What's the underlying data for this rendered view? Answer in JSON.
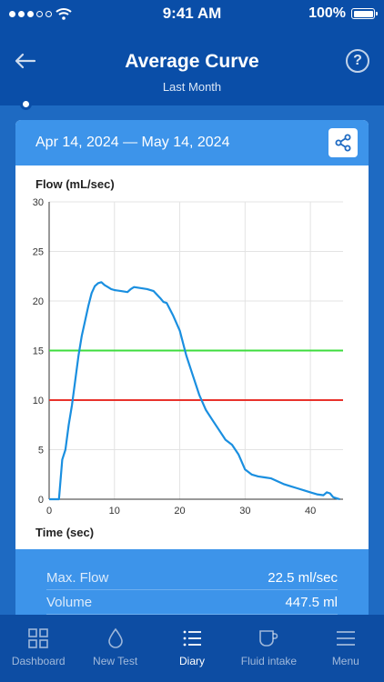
{
  "status_bar": {
    "time": "9:41 AM",
    "battery": "100%"
  },
  "header": {
    "title": "Average Curve",
    "subtitle": "Last Month",
    "help_label": "?"
  },
  "card": {
    "date_range": "Apr 14, 2024 — May 14, 2024"
  },
  "stats": [
    {
      "label": "Max. Flow",
      "value": "22.5 ml/sec"
    },
    {
      "label": "Volume",
      "value": "447.5 ml"
    }
  ],
  "tabs": [
    {
      "label": "Dashboard",
      "icon": "grid-icon",
      "active": false
    },
    {
      "label": "New Test",
      "icon": "droplet-icon",
      "active": false
    },
    {
      "label": "Diary",
      "icon": "list-icon",
      "active": true
    },
    {
      "label": "Fluid intake",
      "icon": "cup-icon",
      "active": false
    },
    {
      "label": "Menu",
      "icon": "menu-icon",
      "active": false
    }
  ],
  "colors": {
    "primary": "#0a4ea8",
    "accent": "#3d94ea",
    "curve": "#1a8fe0",
    "upper_ref": "#3ddc3d",
    "lower_ref": "#e8322b"
  },
  "chart_data": {
    "type": "line",
    "ylabel": "Flow (mL/sec)",
    "xlabel": "Time (sec)",
    "xlim": [
      0,
      45
    ],
    "ylim": [
      0,
      30
    ],
    "x_ticks": [
      0,
      10,
      20,
      30,
      40
    ],
    "y_ticks": [
      0,
      5,
      10,
      15,
      20,
      25,
      30
    ],
    "grid": true,
    "reference_lines": [
      {
        "y": 15,
        "color": "#3ddc3d"
      },
      {
        "y": 10,
        "color": "#e8322b"
      }
    ],
    "series": [
      {
        "x": [
          0,
          1.5,
          2,
          2.5,
          3,
          3.5,
          4,
          4.5,
          5,
          5.5,
          6,
          6.5,
          7,
          7.5,
          8,
          8.5,
          9,
          9.5,
          10,
          11,
          12,
          12.5,
          13,
          14,
          15,
          16,
          17,
          17.5,
          18,
          19,
          20,
          21,
          22,
          23,
          24,
          25,
          26,
          27,
          28,
          29,
          30,
          31,
          32,
          33,
          34,
          35,
          36,
          37,
          38,
          39,
          40,
          41,
          42,
          42.5,
          43,
          43.5,
          44,
          44.5
        ],
        "y": [
          0,
          0,
          4,
          5,
          7.5,
          9.5,
          12,
          14.5,
          16.5,
          18,
          19.5,
          20.8,
          21.5,
          21.8,
          21.9,
          21.6,
          21.4,
          21.2,
          21.1,
          21.0,
          20.9,
          21.2,
          21.4,
          21.3,
          21.2,
          21.0,
          20.3,
          19.9,
          19.8,
          18.5,
          17.0,
          14.5,
          12.5,
          10.5,
          9.0,
          8.0,
          7.0,
          6.0,
          5.5,
          4.5,
          3.0,
          2.5,
          2.3,
          2.2,
          2.1,
          1.8,
          1.5,
          1.3,
          1.1,
          0.9,
          0.7,
          0.5,
          0.4,
          0.7,
          0.6,
          0.2,
          0.1,
          0
        ]
      }
    ]
  }
}
